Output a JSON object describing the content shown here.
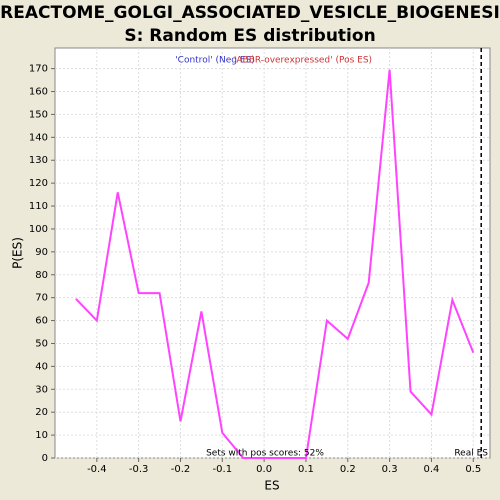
{
  "chart_data": {
    "type": "line",
    "title": [
      "REACTOME_GOLGI_ASSOCIATED_VESICLE_BIOGENESI",
      "S: Random ES distribution"
    ],
    "x_label": "ES",
    "y_label": "P(ES)",
    "legend": [
      {
        "name": "'Control' (Neg ES)",
        "color": "#3333cc"
      },
      {
        "name": "'ABBR-overexpressed' (Pos ES)",
        "color": "#cc3333"
      }
    ],
    "x": [
      -0.45,
      -0.4,
      -0.35,
      -0.3,
      -0.25,
      -0.2,
      -0.15,
      -0.1,
      -0.05,
      0,
      0.05,
      0.1,
      0.15,
      0.2,
      0.25,
      0.3,
      0.35,
      0.4,
      0.45,
      0.5
    ],
    "series": [
      {
        "name": "Random ES",
        "color": "#ff44ff",
        "values": [
          69.5,
          60,
          116,
          72,
          72,
          16,
          64,
          11,
          0,
          0,
          0,
          0,
          60,
          52,
          76.5,
          169.5,
          29,
          19,
          69,
          46
        ]
      }
    ],
    "real_es": 0.519,
    "real_es_label": "Real ES",
    "annotation": "Sets with pos scores: 52%",
    "xlim": [
      -0.5,
      0.54
    ],
    "ylim": [
      0,
      179
    ],
    "xticks": [
      -0.4,
      -0.3,
      -0.2,
      -0.1,
      {
        "value": 0,
        "label": "0.0"
      },
      0.1,
      0.2,
      0.3,
      0.4,
      0.5
    ],
    "yticks": [
      0,
      10,
      20,
      30,
      40,
      50,
      60,
      70,
      80,
      90,
      100,
      110,
      120,
      130,
      140,
      150,
      160,
      170
    ],
    "grid": true
  }
}
